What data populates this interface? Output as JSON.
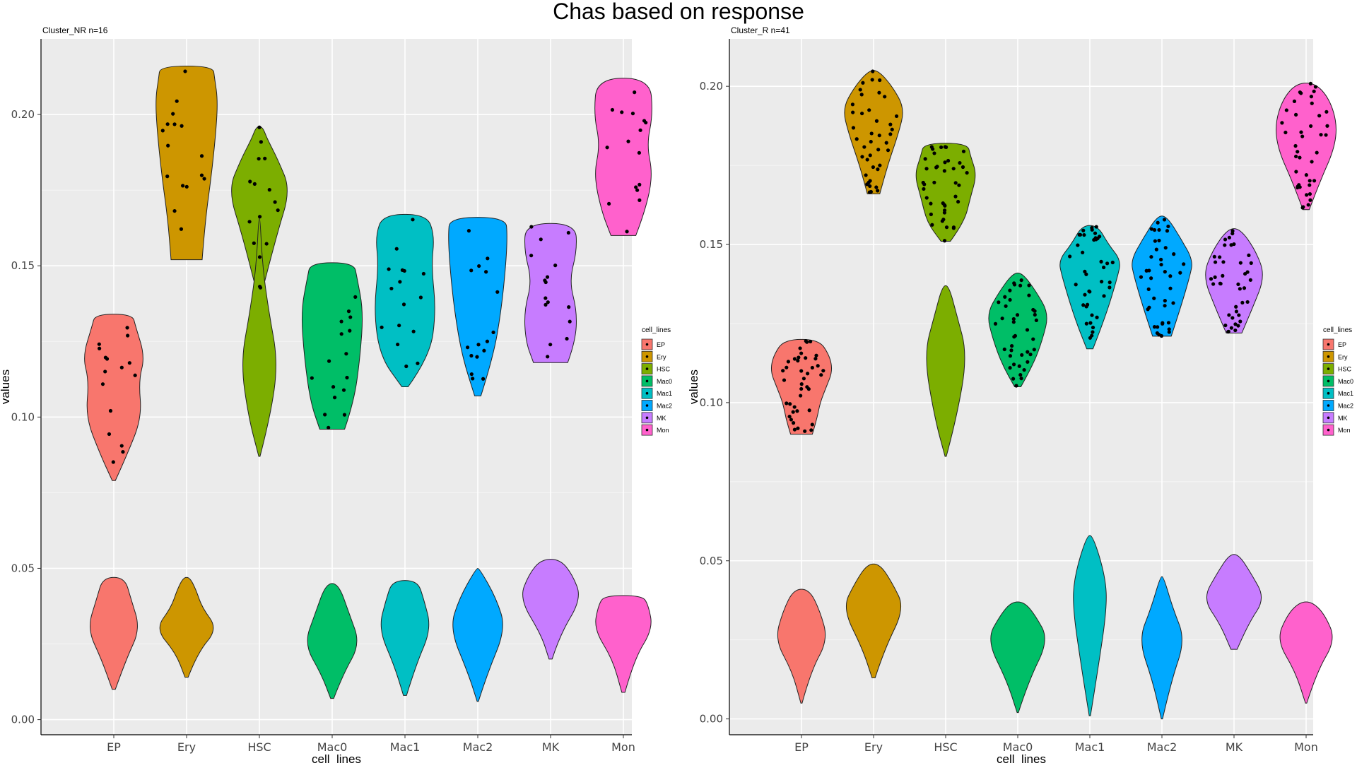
{
  "title": "Chas based on response",
  "colors": {
    "EP": "#F8766D",
    "Ery": "#CD9600",
    "HSC": "#7CAE00",
    "Mac0": "#00BE67",
    "Mac1": "#00BFC4",
    "Mac2": "#00A9FF",
    "MK": "#C77CFF",
    "Mon": "#FF61CC"
  },
  "chart_data": [
    {
      "type": "violin",
      "subtitle": "Cluster_NR n=16",
      "xlabel": "cell_lines",
      "ylabel": "values",
      "ylim": [
        -0.005,
        0.225
      ],
      "yticks": [
        "0.00",
        "0.05",
        "0.10",
        "0.15",
        "0.20"
      ],
      "categories": [
        "EP",
        "Ery",
        "HSC",
        "Mac0",
        "Mac1",
        "Mac2",
        "MK",
        "Mon"
      ],
      "legend": {
        "title": "cell_lines",
        "position": "right",
        "entries": [
          "EP",
          "Ery",
          "HSC",
          "Mac0",
          "Mac1",
          "Mac2",
          "MK",
          "Mon"
        ]
      },
      "grid": true,
      "upper_violins": [
        {
          "name": "EP",
          "min": 0.079,
          "max": 0.134,
          "profile": [
            [
              0.079,
              0.05
            ],
            [
              0.088,
              0.45
            ],
            [
              0.1,
              0.9
            ],
            [
              0.112,
              0.8
            ],
            [
              0.12,
              1.0
            ],
            [
              0.13,
              0.7
            ],
            [
              0.134,
              0.6
            ]
          ]
        },
        {
          "name": "Ery",
          "min": 0.152,
          "max": 0.216,
          "profile": [
            [
              0.152,
              0.5
            ],
            [
              0.165,
              0.6
            ],
            [
              0.18,
              0.8
            ],
            [
              0.195,
              0.95
            ],
            [
              0.205,
              1.0
            ],
            [
              0.212,
              0.9
            ],
            [
              0.216,
              0.85
            ]
          ]
        },
        {
          "name": "HSC",
          "min": 0.142,
          "max": 0.196,
          "profile": [
            [
              0.142,
              0.1
            ],
            [
              0.16,
              0.55
            ],
            [
              0.175,
              1.0
            ],
            [
              0.185,
              0.6
            ],
            [
              0.192,
              0.25
            ],
            [
              0.196,
              0.1
            ]
          ]
        },
        {
          "name": "HSC",
          "min": 0.087,
          "max": 0.166,
          "profile": [
            [
              0.087,
              0.02
            ],
            [
              0.1,
              0.35
            ],
            [
              0.118,
              0.6
            ],
            [
              0.135,
              0.3
            ],
            [
              0.15,
              0.1
            ],
            [
              0.166,
              0.02
            ]
          ]
        },
        {
          "name": "Mac0",
          "min": 0.096,
          "max": 0.151,
          "profile": [
            [
              0.096,
              0.4
            ],
            [
              0.105,
              0.7
            ],
            [
              0.12,
              0.9
            ],
            [
              0.135,
              1.0
            ],
            [
              0.146,
              0.8
            ],
            [
              0.151,
              0.7
            ]
          ]
        },
        {
          "name": "Mac1",
          "min": 0.11,
          "max": 0.167,
          "profile": [
            [
              0.11,
              0.1
            ],
            [
              0.12,
              0.8
            ],
            [
              0.135,
              1.0
            ],
            [
              0.15,
              0.85
            ],
            [
              0.16,
              0.95
            ],
            [
              0.167,
              0.7
            ]
          ]
        },
        {
          "name": "Mac2",
          "min": 0.107,
          "max": 0.166,
          "profile": [
            [
              0.107,
              0.1
            ],
            [
              0.12,
              0.5
            ],
            [
              0.135,
              0.75
            ],
            [
              0.15,
              0.9
            ],
            [
              0.16,
              0.95
            ],
            [
              0.166,
              0.9
            ]
          ]
        },
        {
          "name": "MK",
          "min": 0.118,
          "max": 0.164,
          "profile": [
            [
              0.118,
              0.55
            ],
            [
              0.125,
              0.8
            ],
            [
              0.135,
              0.85
            ],
            [
              0.145,
              0.6
            ],
            [
              0.155,
              0.85
            ],
            [
              0.164,
              0.8
            ]
          ]
        },
        {
          "name": "Mon",
          "min": 0.16,
          "max": 0.212,
          "profile": [
            [
              0.16,
              0.4
            ],
            [
              0.168,
              0.7
            ],
            [
              0.18,
              0.95
            ],
            [
              0.19,
              0.75
            ],
            [
              0.2,
              0.95
            ],
            [
              0.212,
              0.85
            ]
          ]
        }
      ],
      "lower_violins": [
        {
          "name": "EP",
          "min": 0.01,
          "max": 0.047,
          "profile": [
            [
              0.01,
              0.05
            ],
            [
              0.02,
              0.4
            ],
            [
              0.03,
              0.85
            ],
            [
              0.04,
              0.55
            ],
            [
              0.047,
              0.35
            ]
          ]
        },
        {
          "name": "Ery",
          "min": 0.014,
          "max": 0.047,
          "profile": [
            [
              0.014,
              0.05
            ],
            [
              0.022,
              0.35
            ],
            [
              0.03,
              1.0
            ],
            [
              0.037,
              0.5
            ],
            [
              0.043,
              0.3
            ],
            [
              0.047,
              0.1
            ]
          ]
        },
        {
          "name": "Mac0",
          "min": 0.007,
          "max": 0.045,
          "profile": [
            [
              0.007,
              0.05
            ],
            [
              0.015,
              0.35
            ],
            [
              0.025,
              0.9
            ],
            [
              0.035,
              0.55
            ],
            [
              0.045,
              0.2
            ]
          ]
        },
        {
          "name": "Mac1",
          "min": 0.008,
          "max": 0.046,
          "profile": [
            [
              0.008,
              0.05
            ],
            [
              0.018,
              0.35
            ],
            [
              0.03,
              0.85
            ],
            [
              0.04,
              0.6
            ],
            [
              0.046,
              0.4
            ]
          ]
        },
        {
          "name": "Mac2",
          "min": 0.006,
          "max": 0.05,
          "profile": [
            [
              0.006,
              0.02
            ],
            [
              0.015,
              0.3
            ],
            [
              0.03,
              0.9
            ],
            [
              0.04,
              0.6
            ],
            [
              0.05,
              0.05
            ]
          ]
        },
        {
          "name": "MK",
          "min": 0.02,
          "max": 0.053,
          "profile": [
            [
              0.02,
              0.05
            ],
            [
              0.028,
              0.3
            ],
            [
              0.04,
              1.0
            ],
            [
              0.048,
              0.7
            ],
            [
              0.053,
              0.3
            ]
          ]
        },
        {
          "name": "Mon",
          "min": 0.009,
          "max": 0.041,
          "profile": [
            [
              0.009,
              0.05
            ],
            [
              0.02,
              0.35
            ],
            [
              0.03,
              0.95
            ],
            [
              0.038,
              0.8
            ],
            [
              0.041,
              0.6
            ]
          ]
        }
      ]
    },
    {
      "type": "violin",
      "subtitle": "Cluster_R n=41",
      "xlabel": "cell_lines",
      "ylabel": "values",
      "ylim": [
        -0.005,
        0.215
      ],
      "yticks": [
        "0.00",
        "0.05",
        "0.10",
        "0.15",
        "0.20"
      ],
      "categories": [
        "EP",
        "Ery",
        "HSC",
        "Mac0",
        "Mac1",
        "Mac2",
        "MK",
        "Mon"
      ],
      "legend": {
        "title": "cell_lines",
        "position": "right",
        "entries": [
          "EP",
          "Ery",
          "HSC",
          "Mac0",
          "Mac1",
          "Mac2",
          "MK",
          "Mon"
        ]
      },
      "grid": true,
      "upper_violins": [
        {
          "name": "EP",
          "min": 0.09,
          "max": 0.12,
          "profile": [
            [
              0.09,
              0.35
            ],
            [
              0.095,
              0.5
            ],
            [
              0.1,
              0.6
            ],
            [
              0.105,
              0.8
            ],
            [
              0.11,
              1.0
            ],
            [
              0.115,
              0.9
            ],
            [
              0.12,
              0.55
            ]
          ]
        },
        {
          "name": "Ery",
          "min": 0.166,
          "max": 0.205,
          "profile": [
            [
              0.166,
              0.2
            ],
            [
              0.175,
              0.45
            ],
            [
              0.185,
              0.8
            ],
            [
              0.193,
              1.0
            ],
            [
              0.2,
              0.6
            ],
            [
              0.205,
              0.15
            ]
          ]
        },
        {
          "name": "HSC",
          "min": 0.151,
          "max": 0.182,
          "profile": [
            [
              0.151,
              0.15
            ],
            [
              0.157,
              0.6
            ],
            [
              0.165,
              0.8
            ],
            [
              0.172,
              1.0
            ],
            [
              0.178,
              0.8
            ],
            [
              0.182,
              0.7
            ]
          ]
        },
        {
          "name": "HSC",
          "min": 0.083,
          "max": 0.137,
          "profile": [
            [
              0.083,
              0.02
            ],
            [
              0.095,
              0.35
            ],
            [
              0.115,
              0.7
            ],
            [
              0.128,
              0.35
            ],
            [
              0.137,
              0.1
            ]
          ]
        },
        {
          "name": "Mac0",
          "min": 0.105,
          "max": 0.141,
          "profile": [
            [
              0.105,
              0.1
            ],
            [
              0.112,
              0.5
            ],
            [
              0.12,
              0.8
            ],
            [
              0.128,
              1.0
            ],
            [
              0.135,
              0.6
            ],
            [
              0.141,
              0.15
            ]
          ]
        },
        {
          "name": "Mac1",
          "min": 0.117,
          "max": 0.156,
          "profile": [
            [
              0.117,
              0.1
            ],
            [
              0.127,
              0.5
            ],
            [
              0.14,
              0.9
            ],
            [
              0.145,
              1.0
            ],
            [
              0.15,
              0.6
            ],
            [
              0.156,
              0.25
            ]
          ]
        },
        {
          "name": "Mac2",
          "min": 0.121,
          "max": 0.159,
          "profile": [
            [
              0.121,
              0.3
            ],
            [
              0.13,
              0.6
            ],
            [
              0.14,
              0.9
            ],
            [
              0.145,
              1.0
            ],
            [
              0.152,
              0.6
            ],
            [
              0.159,
              0.15
            ]
          ]
        },
        {
          "name": "MK",
          "min": 0.122,
          "max": 0.155,
          "profile": [
            [
              0.122,
              0.25
            ],
            [
              0.13,
              0.6
            ],
            [
              0.14,
              1.0
            ],
            [
              0.148,
              0.7
            ],
            [
              0.155,
              0.2
            ]
          ]
        },
        {
          "name": "Mon",
          "min": 0.161,
          "max": 0.201,
          "profile": [
            [
              0.161,
              0.1
            ],
            [
              0.17,
              0.45
            ],
            [
              0.18,
              0.9
            ],
            [
              0.188,
              1.0
            ],
            [
              0.196,
              0.75
            ],
            [
              0.201,
              0.3
            ]
          ]
        }
      ],
      "lower_violins": [
        {
          "name": "EP",
          "min": 0.005,
          "max": 0.041,
          "profile": [
            [
              0.005,
              0.02
            ],
            [
              0.015,
              0.3
            ],
            [
              0.025,
              0.85
            ],
            [
              0.034,
              0.6
            ],
            [
              0.041,
              0.25
            ]
          ]
        },
        {
          "name": "Ery",
          "min": 0.013,
          "max": 0.049,
          "profile": [
            [
              0.013,
              0.05
            ],
            [
              0.022,
              0.35
            ],
            [
              0.035,
              1.0
            ],
            [
              0.043,
              0.6
            ],
            [
              0.049,
              0.2
            ]
          ]
        },
        {
          "name": "Mac0",
          "min": 0.002,
          "max": 0.037,
          "profile": [
            [
              0.002,
              0.02
            ],
            [
              0.012,
              0.35
            ],
            [
              0.025,
              1.0
            ],
            [
              0.033,
              0.55
            ],
            [
              0.037,
              0.2
            ]
          ]
        },
        {
          "name": "Mac1",
          "min": 0.001,
          "max": 0.058,
          "profile": [
            [
              0.001,
              0.02
            ],
            [
              0.015,
              0.25
            ],
            [
              0.035,
              0.55
            ],
            [
              0.045,
              0.5
            ],
            [
              0.058,
              0.1
            ]
          ]
        },
        {
          "name": "Mac2",
          "min": 0.0,
          "max": 0.045,
          "profile": [
            [
              0.0,
              0.02
            ],
            [
              0.012,
              0.3
            ],
            [
              0.025,
              0.75
            ],
            [
              0.035,
              0.35
            ],
            [
              0.045,
              0.05
            ]
          ]
        },
        {
          "name": "MK",
          "min": 0.022,
          "max": 0.052,
          "profile": [
            [
              0.022,
              0.1
            ],
            [
              0.03,
              0.45
            ],
            [
              0.038,
              1.0
            ],
            [
              0.046,
              0.55
            ],
            [
              0.052,
              0.15
            ]
          ]
        },
        {
          "name": "Mon",
          "min": 0.005,
          "max": 0.037,
          "profile": [
            [
              0.005,
              0.02
            ],
            [
              0.015,
              0.35
            ],
            [
              0.025,
              0.95
            ],
            [
              0.033,
              0.6
            ],
            [
              0.037,
              0.2
            ]
          ]
        }
      ],
      "points_per_group": 41
    }
  ]
}
